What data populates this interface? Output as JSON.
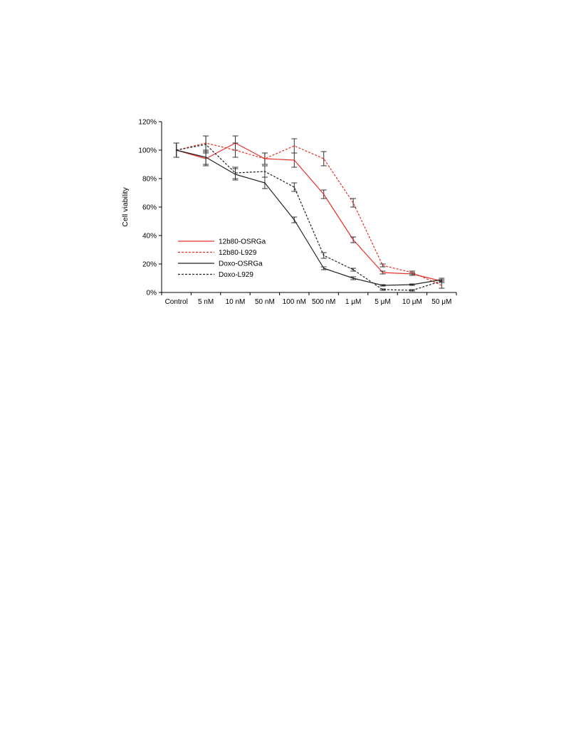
{
  "chart_data": {
    "type": "line",
    "title": "",
    "xlabel": "",
    "ylabel": "Cell viability",
    "categories": [
      "Control",
      "5 nM",
      "10 nM",
      "50 nM",
      "100 nM",
      "500 nM",
      "1 μM",
      "5 μM",
      "10 μM",
      "50 μM"
    ],
    "yticks": [
      "0%",
      "20%",
      "40%",
      "60%",
      "80%",
      "100%",
      "120%"
    ],
    "ylim": [
      0,
      120
    ],
    "grid": false,
    "legend_position": "bottom-left",
    "series": [
      {
        "name": "12b80-OSRGa",
        "color": "#e8302a",
        "dash": "solid",
        "values": [
          100,
          94,
          105,
          94,
          93,
          69,
          37,
          14,
          13,
          8
        ],
        "errors": [
          5,
          5,
          5,
          4,
          5,
          3,
          2,
          1,
          1,
          1
        ]
      },
      {
        "name": "12b80-L929",
        "color": "#e8302a",
        "dash": "dashed",
        "values": [
          100,
          105,
          100,
          94,
          103,
          94,
          63,
          19,
          14,
          5
        ],
        "errors": [
          5,
          5,
          5,
          4,
          5,
          5,
          3,
          1,
          1,
          2
        ]
      },
      {
        "name": "Doxo-OSRGa",
        "color": "#222222",
        "dash": "solid",
        "values": [
          100,
          95,
          83,
          77,
          51,
          17,
          10,
          5,
          5.5,
          9
        ],
        "errors": [
          5,
          5,
          4,
          4,
          2,
          1,
          1,
          0.5,
          0.5,
          1
        ]
      },
      {
        "name": "Doxo-L929",
        "color": "#222222",
        "dash": "dashed",
        "values": [
          100,
          104,
          84,
          85,
          74,
          26,
          16,
          2,
          1.5,
          8
        ],
        "errors": [
          5,
          6,
          4,
          4,
          3,
          2,
          1,
          0.5,
          0.5,
          1
        ]
      }
    ]
  }
}
